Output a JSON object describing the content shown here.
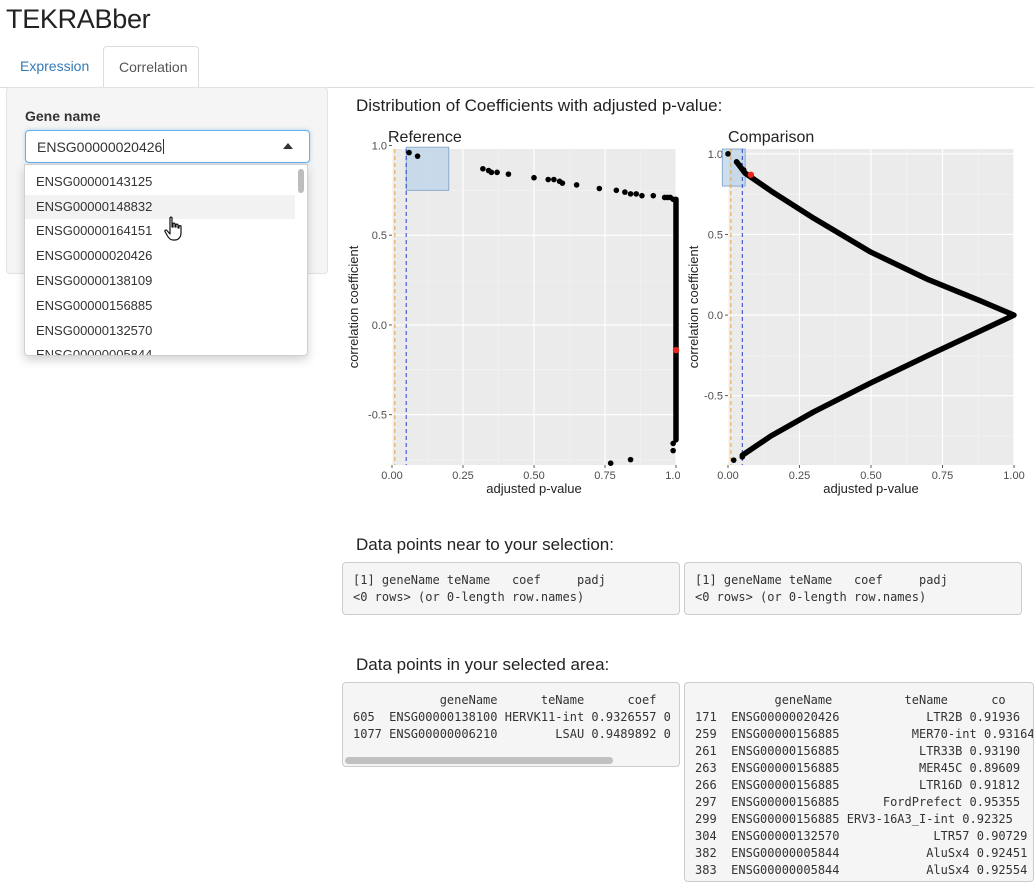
{
  "app": {
    "title": "TEKRABber"
  },
  "tabs": [
    {
      "label": "Expression",
      "active": false
    },
    {
      "label": "Correlation",
      "active": true
    }
  ],
  "sidebar": {
    "gene_label": "Gene name",
    "gene_input": {
      "value": "ENSG00000020426"
    },
    "dropdown_options": [
      "ENSG00000143125",
      "ENSG00000148832",
      "ENSG00000164151",
      "ENSG00000020426",
      "ENSG00000138109",
      "ENSG00000156885",
      "ENSG00000132570",
      "ENSG00000005844"
    ],
    "hovered_option": "ENSG00000148832"
  },
  "main": {
    "distribution_heading": "Distribution of Coefficients with adjusted p-value:",
    "near_heading": "Data points near to your selection:",
    "area_heading": "Data points in your selected area:"
  },
  "chart_data": [
    {
      "type": "scatter",
      "title": "Reference",
      "xlabel": "adjusted p-value",
      "ylabel": "correlation coefficient",
      "xlim": [
        0,
        1
      ],
      "ylim": [
        -0.78,
        0.98
      ],
      "xticks": [
        "0.00",
        "0.25",
        "0.50",
        "0.75",
        "1.00"
      ],
      "yticks": [
        "-0.5",
        "0.0",
        "0.5",
        "1.0"
      ],
      "grid": true,
      "colors": {
        "panel": "#ebebeb",
        "point": "#000000",
        "highlight": "#e8261c",
        "orange_line": "#e6a63c",
        "blue_line": "#2244cc",
        "selection_fill": "#bcd3ea",
        "selection_stroke": "#7a9ec2"
      },
      "vlines": [
        0.01,
        0.05
      ],
      "selection": {
        "x": [
          0.05,
          0.2
        ],
        "y": [
          0.75,
          0.99
        ]
      },
      "highlight_point": [
        1.0,
        -0.14
      ],
      "points": [
        [
          0.06,
          0.96
        ],
        [
          0.09,
          0.94
        ],
        [
          0.32,
          0.87
        ],
        [
          0.34,
          0.86
        ],
        [
          0.35,
          0.85
        ],
        [
          0.37,
          0.85
        ],
        [
          0.41,
          0.84
        ],
        [
          0.5,
          0.82
        ],
        [
          0.55,
          0.81
        ],
        [
          0.57,
          0.81
        ],
        [
          0.59,
          0.8
        ],
        [
          0.6,
          0.79
        ],
        [
          0.65,
          0.78
        ],
        [
          0.73,
          0.76
        ],
        [
          0.79,
          0.75
        ],
        [
          0.82,
          0.74
        ],
        [
          0.84,
          0.73
        ],
        [
          0.86,
          0.73
        ],
        [
          0.88,
          0.72
        ],
        [
          0.92,
          0.72
        ],
        [
          0.96,
          0.71
        ],
        [
          0.97,
          0.71
        ],
        [
          0.98,
          0.71
        ],
        [
          0.99,
          0.7
        ],
        [
          0.77,
          -0.77
        ],
        [
          0.84,
          -0.75
        ],
        [
          0.99,
          -0.7
        ],
        [
          0.99,
          -0.66
        ]
      ],
      "dense_column": {
        "x": 1.0,
        "y_from": -0.64,
        "y_to": 0.7
      }
    },
    {
      "type": "scatter",
      "title": "Comparison",
      "xlabel": "adjusted p-value",
      "ylabel": "correlation coefficient",
      "xlim": [
        0,
        1
      ],
      "ylim": [
        -0.93,
        1.03
      ],
      "xticks": [
        "0.00",
        "0.25",
        "0.50",
        "0.75",
        "1.00"
      ],
      "yticks": [
        "-0.5",
        "0.0",
        "0.5",
        "1.0"
      ],
      "grid": true,
      "colors": {
        "panel": "#ebebeb",
        "point": "#000000",
        "highlight": "#e8261c",
        "orange_line": "#e6a63c",
        "blue_line": "#2244cc",
        "selection_fill": "#bcd3ea",
        "selection_stroke": "#7a9ec2"
      },
      "vlines": [
        0.01,
        0.05
      ],
      "selection": {
        "x": [
          -0.02,
          0.06
        ],
        "y": [
          0.8,
          1.03
        ]
      },
      "highlight_point": [
        0.08,
        0.87
      ],
      "points": [
        [
          0.0,
          1.0
        ],
        [
          0.03,
          0.95
        ],
        [
          0.04,
          0.93
        ],
        [
          0.055,
          0.9
        ],
        [
          0.05,
          -0.88
        ],
        [
          0.02,
          -0.9
        ]
      ],
      "curve": [
        [
          0.03,
          0.95
        ],
        [
          0.06,
          0.88
        ],
        [
          0.15,
          0.77
        ],
        [
          0.3,
          0.6
        ],
        [
          0.5,
          0.39
        ],
        [
          0.7,
          0.22
        ],
        [
          0.88,
          0.09
        ],
        [
          1.0,
          0.0
        ],
        [
          0.88,
          -0.1
        ],
        [
          0.7,
          -0.25
        ],
        [
          0.5,
          -0.42
        ],
        [
          0.3,
          -0.6
        ],
        [
          0.15,
          -0.75
        ],
        [
          0.05,
          -0.87
        ]
      ]
    }
  ],
  "tables": {
    "near_left": "[1] geneName teName   coef     padj\n<0 rows> (or 0-length row.names)",
    "near_right": "[1] geneName teName   coef     padj\n<0 rows> (or 0-length row.names)",
    "area_left": "            geneName      teName      coef\n605  ENSG00000138100 HERVK11-int 0.9326557 0\n1077 ENSG00000006210        LSAU 0.9489892 0",
    "area_right": "           geneName          teName      co\n171  ENSG00000020426            LTR2B 0.91936\n259  ENSG00000156885          MER70-int 0.93164\n261  ENSG00000156885           LTR33B 0.93190\n263  ENSG00000156885           MER45C 0.89609\n266  ENSG00000156885           LTR16D 0.91812\n297  ENSG00000156885      FordPrefect 0.95355\n299  ENSG00000156885 ERV3-16A3_I-int 0.92325\n304  ENSG00000132570             LTR57 0.90729\n382  ENSG00000005844            AluSx4 0.92451\n383  ENSG00000005844            AluSx4 0.92554"
  }
}
